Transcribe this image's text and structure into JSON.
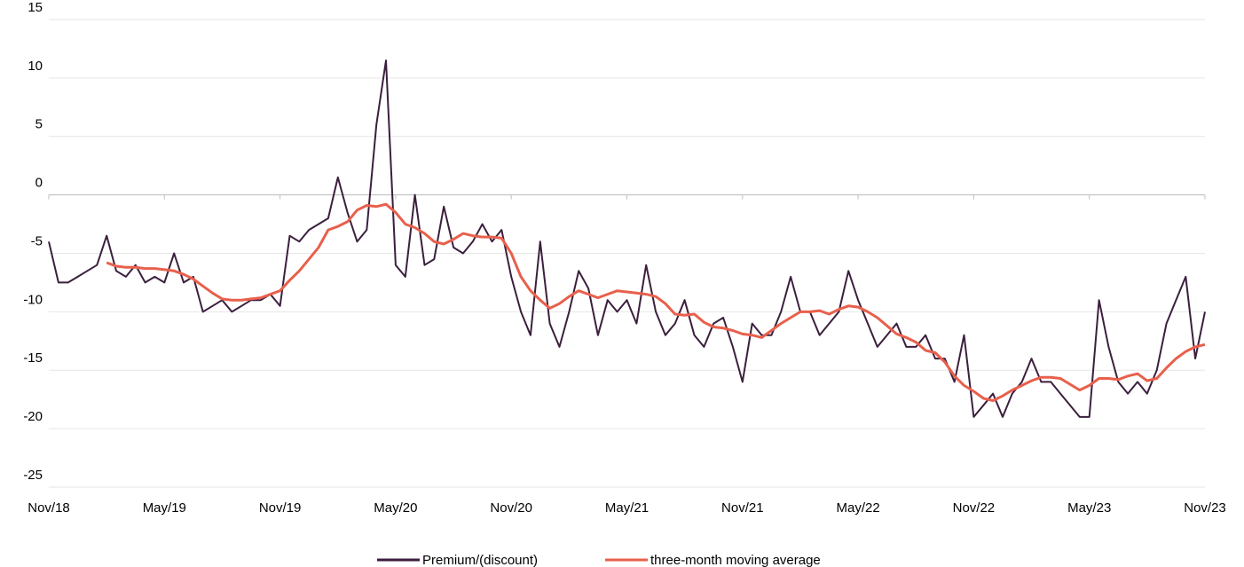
{
  "chart_data": {
    "type": "line",
    "categories": [
      "Nov/18",
      null,
      null,
      null,
      null,
      null,
      null,
      null,
      null,
      null,
      null,
      null,
      "May/19",
      null,
      null,
      null,
      null,
      null,
      null,
      null,
      null,
      null,
      null,
      null,
      "Nov/19",
      null,
      null,
      null,
      null,
      null,
      null,
      null,
      null,
      null,
      null,
      null,
      "May/20",
      null,
      null,
      null,
      null,
      null,
      null,
      null,
      null,
      null,
      null,
      null,
      "Nov/20",
      null,
      null,
      null,
      null,
      null,
      null,
      null,
      null,
      null,
      null,
      null,
      "May/21",
      null,
      null,
      null,
      null,
      null,
      null,
      null,
      null,
      null,
      null,
      null,
      "Nov/21",
      null,
      null,
      null,
      null,
      null,
      null,
      null,
      null,
      null,
      null,
      null,
      "May/22",
      null,
      null,
      null,
      null,
      null,
      null,
      null,
      null,
      null,
      null,
      null,
      "Nov/22",
      null,
      null,
      null,
      null,
      null,
      null,
      null,
      null,
      null,
      null,
      null,
      "May/23",
      null,
      null,
      null,
      null,
      null,
      null,
      null,
      null,
      null,
      null,
      null,
      "Nov/23"
    ],
    "series": [
      {
        "name": "Premium/(discount)",
        "color": "#3b1f3d",
        "values": [
          -4,
          -7.5,
          -7.5,
          -7,
          -6.5,
          -6,
          -3.5,
          -6.5,
          -7,
          -6,
          -7.5,
          -7,
          -7.5,
          -5,
          -7.5,
          -7,
          -10,
          -9.5,
          -9,
          -10,
          -9.5,
          -9,
          -9,
          -8.5,
          -9.5,
          -3.5,
          -4,
          -3,
          -2.5,
          -2,
          1.5,
          -1.5,
          -4,
          -3,
          6,
          11.5,
          -6,
          -7,
          0,
          -6,
          -5.5,
          -1,
          -4.5,
          -5,
          -4,
          -2.5,
          -4,
          -3,
          -7,
          -10,
          -12,
          -4,
          -11,
          -13,
          -10,
          -6.5,
          -8,
          -12,
          -9,
          -10,
          -9,
          -11,
          -6,
          -10,
          -12,
          -11,
          -9,
          -12,
          -13,
          -11,
          -10.5,
          -13,
          -16,
          -11,
          -12,
          -12,
          -10,
          -7,
          -10,
          -10,
          -12,
          -11,
          -10,
          -6.5,
          -9,
          -11,
          -13,
          -12,
          -11,
          -13,
          -13,
          -12,
          -14,
          -14,
          -16,
          -12,
          -19,
          -18,
          -17,
          -19,
          -17,
          -16,
          -14,
          -16,
          -16,
          -17,
          -18,
          -19,
          -19,
          -9,
          -13,
          -16,
          -17,
          -16,
          -17,
          -15,
          -11,
          -9,
          -7,
          -14,
          -10
        ]
      },
      {
        "name": "three-month moving average",
        "color": "#e8604c",
        "values": [
          null,
          null,
          null,
          null,
          null,
          null,
          -5.8,
          -6.1,
          -6.2,
          -6.2,
          -6.3,
          -6.3,
          -6.4,
          -6.5,
          -6.8,
          -7.2,
          -7.8,
          -8.4,
          -8.9,
          -9,
          -9,
          -8.9,
          -8.8,
          -8.5,
          -8.2,
          -7.3,
          -6.5,
          -5.5,
          -4.5,
          -3,
          -2.7,
          -2.3,
          -1.3,
          -0.9,
          -1,
          -0.8,
          -1.5,
          -2.5,
          -2.8,
          -3.3,
          -4,
          -4.2,
          -3.8,
          -3.3,
          -3.5,
          -3.6,
          -3.6,
          -3.7,
          -5,
          -7,
          -8.2,
          -9,
          -9.7,
          -9.3,
          -8.7,
          -8.2,
          -8.5,
          -8.8,
          -8.5,
          -8.2,
          -8.3,
          -8.4,
          -8.5,
          -8.7,
          -9.3,
          -10.2,
          -10.3,
          -10.2,
          -10.9,
          -11.3,
          -11.4,
          -11.6,
          -11.9,
          -12,
          -12.2,
          -11.6,
          -11,
          -10.5,
          -10,
          -10,
          -9.9,
          -10.2,
          -9.8,
          -9.5,
          -9.6,
          -10,
          -10.5,
          -11.2,
          -11.9,
          -12.2,
          -12.6,
          -13.3,
          -13.5,
          -14.3,
          -15.5,
          -16.3,
          -16.8,
          -17.4,
          -17.6,
          -17.2,
          -16.7,
          -16.3,
          -15.9,
          -15.6,
          -15.6,
          -15.7,
          -16.2,
          -16.7,
          -16.3,
          -15.7,
          -15.7,
          -15.8,
          -15.5,
          -15.3,
          -15.9,
          -15.7,
          -14.8,
          -14,
          -13.4,
          -13,
          -12.8
        ]
      }
    ],
    "ylim": [
      -25,
      15
    ],
    "yticks": [
      -25,
      -20,
      -15,
      -10,
      -5,
      0,
      5,
      10,
      15
    ],
    "grid": true
  }
}
